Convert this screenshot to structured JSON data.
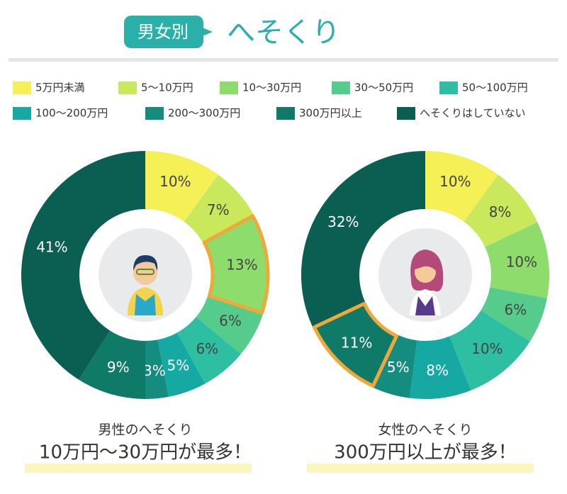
{
  "header": {
    "tag": "男女別",
    "title": "へそくり"
  },
  "legend": {
    "categories": [
      "5万円未満",
      "5～10万円",
      "10～30万円",
      "30～50万円",
      "50～100万円",
      "100～200万円",
      "200～300万円",
      "300万円以上",
      "へそくりはしていない"
    ],
    "colors": [
      "#f5f056",
      "#c9e85c",
      "#8ddc6c",
      "#55cc8c",
      "#2ebfa2",
      "#16a8a2",
      "#158c80",
      "#0f7a68",
      "#0b5e52"
    ]
  },
  "chart_data": [
    {
      "type": "pie",
      "values": [
        10,
        7,
        13,
        6,
        6,
        5,
        3,
        9,
        41
      ],
      "value_labels": [
        "10%",
        "7%",
        "13%",
        "6%",
        "6%",
        "5%",
        "3%",
        "9%",
        "41%"
      ],
      "highlight": 2,
      "caption": "男性のへそくり",
      "headline": "10万円～30万円が最多！"
    },
    {
      "type": "pie",
      "values": [
        10,
        8,
        10,
        6,
        10,
        8,
        5,
        11,
        32
      ],
      "value_labels": [
        "10%",
        "8%",
        "10%",
        "6%",
        "10%",
        "8%",
        "5%",
        "11%",
        "32%"
      ],
      "highlight": 7,
      "caption": "女性のへそくり",
      "headline": "300万円以上が最多！"
    }
  ]
}
